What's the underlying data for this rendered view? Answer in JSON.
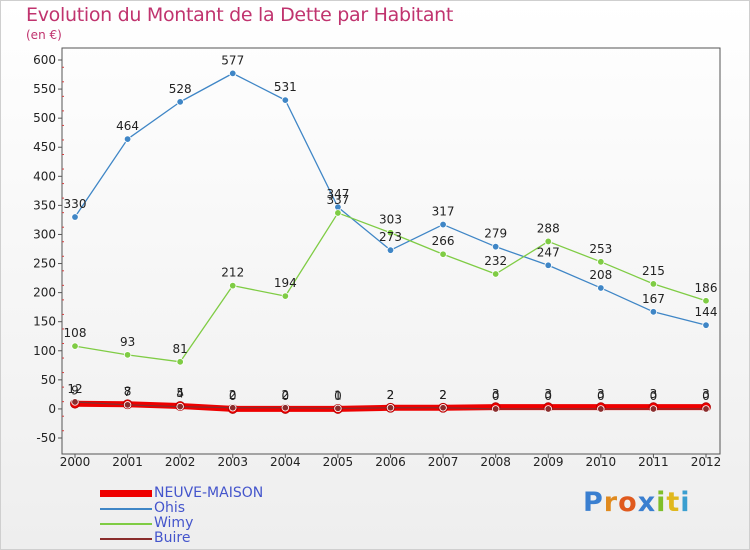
{
  "title": "Evolution du Montant de la Dette par Habitant",
  "unit_label": "(en €)",
  "logo_text": "Proxiti",
  "chart_data": {
    "type": "line",
    "title": "Evolution du Montant de la Dette par Habitant",
    "ylabel": "(en €)",
    "xlabel": "",
    "ylim": [
      -50,
      600
    ],
    "yticks": [
      -50,
      0,
      50,
      100,
      150,
      200,
      250,
      300,
      350,
      400,
      450,
      500,
      550,
      600
    ],
    "x": [
      "2000",
      "2001",
      "2002",
      "2003",
      "2004",
      "2005",
      "2006",
      "2007",
      "2008",
      "2009",
      "2010",
      "2011",
      "2012"
    ],
    "grid": false,
    "legend_position": "bottom-left",
    "series": [
      {
        "name": "NEUVE-MAISON",
        "color": "#ee0000",
        "values": [
          9,
          8,
          5,
          0,
          0,
          0,
          2,
          2,
          3,
          3,
          3,
          3,
          3
        ],
        "labels": [
          "9",
          "8",
          "5",
          "0",
          "0",
          "0",
          "2",
          "2",
          "3",
          "3",
          "3",
          "3",
          "3"
        ]
      },
      {
        "name": "Ohis",
        "color": "#3f86c6",
        "values": [
          330,
          464,
          528,
          577,
          531,
          347,
          273,
          317,
          279,
          247,
          208,
          167,
          144
        ],
        "labels": [
          "330",
          "464",
          "528",
          "577",
          "531",
          "347",
          "273",
          "317",
          "279",
          "247",
          "208",
          "167",
          "144"
        ]
      },
      {
        "name": "Wimy",
        "color": "#7fcc44",
        "values": [
          108,
          93,
          81,
          212,
          194,
          337,
          303,
          266,
          232,
          288,
          253,
          215,
          186
        ],
        "labels": [
          "108",
          "93",
          "81",
          "212",
          "194",
          "337",
          "303",
          "266",
          "232",
          "288",
          "253",
          "215",
          "186"
        ]
      },
      {
        "name": "Buire",
        "color": "#8a2d2d",
        "values": [
          12,
          7,
          4,
          2,
          2,
          1,
          2,
          2,
          0,
          0,
          0,
          0,
          0
        ],
        "labels": [
          "12",
          "7",
          "4",
          "2",
          "2",
          "1",
          "2",
          "2",
          "0",
          "0",
          "0",
          "0",
          "0"
        ]
      }
    ]
  }
}
